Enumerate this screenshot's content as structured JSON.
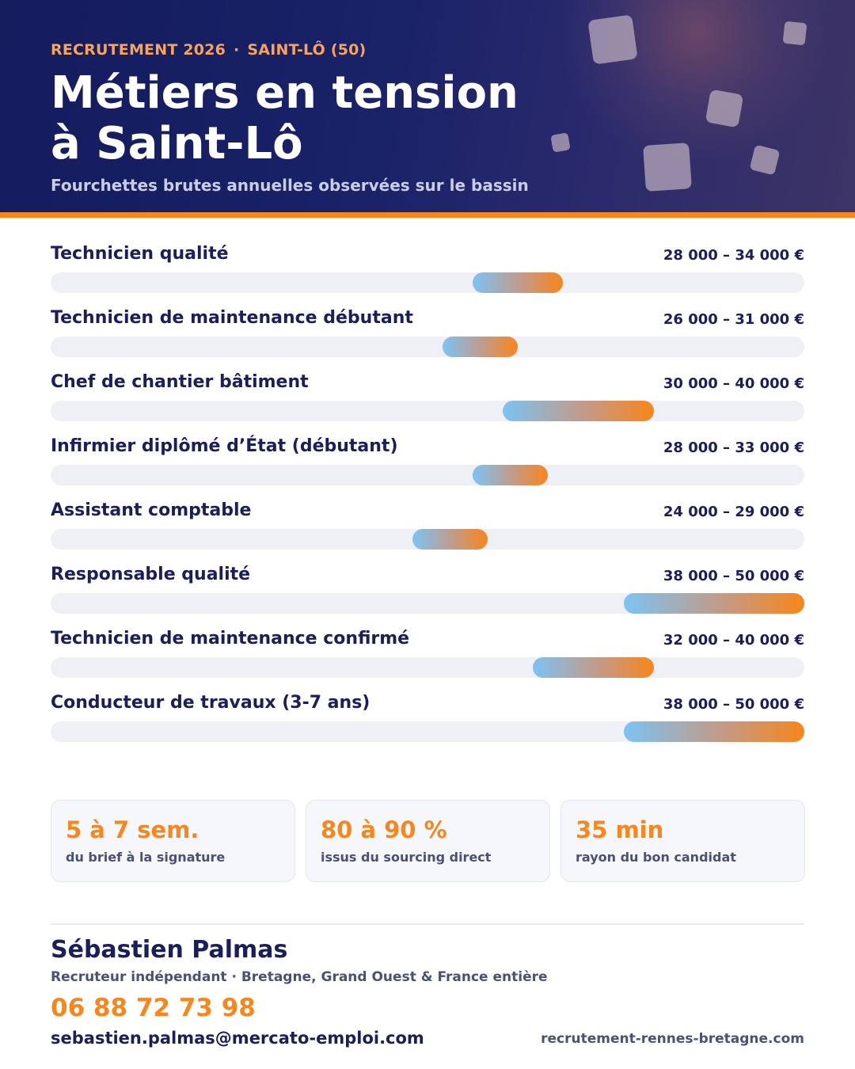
{
  "header": {
    "kicker_left": "RECRUTEMENT 2026",
    "kicker_separator": "·",
    "kicker_right": "SAINT-LÔ (50)",
    "title_line1": "Métiers en tension",
    "title_line2": "à Saint-Lô",
    "subtitle": "Fourchettes brutes annuelles observées sur le bassin"
  },
  "chart_data": {
    "type": "bar",
    "orientation": "horizontal",
    "representation": "salary ranges (min–max)",
    "unit": "€",
    "xlim": [
      0,
      50000
    ],
    "grid": false,
    "legend": "none",
    "colors": {
      "range_start": "#7cc3f3",
      "range_end": "#f7861c",
      "track": "#eef0f6"
    },
    "rows": [
      {
        "label": "Technicien qualité",
        "min": 28000,
        "max": 34000,
        "range_label": "28 000 – 34 000 €"
      },
      {
        "label": "Technicien de maintenance débutant",
        "min": 26000,
        "max": 31000,
        "range_label": "26 000 – 31 000 €"
      },
      {
        "label": "Chef de chantier bâtiment",
        "min": 30000,
        "max": 40000,
        "range_label": "30 000 – 40 000 €"
      },
      {
        "label": "Infirmier diplômé d’État (débutant)",
        "min": 28000,
        "max": 33000,
        "range_label": "28 000 – 33 000 €"
      },
      {
        "label": "Assistant comptable",
        "min": 24000,
        "max": 29000,
        "range_label": "24 000 – 29 000 €"
      },
      {
        "label": "Responsable qualité",
        "min": 38000,
        "max": 50000,
        "range_label": "38 000 – 50 000 €"
      },
      {
        "label": "Technicien de maintenance confirmé",
        "min": 32000,
        "max": 40000,
        "range_label": "32 000 – 40 000 €"
      },
      {
        "label": "Conducteur de travaux (3-7 ans)",
        "min": 38000,
        "max": 50000,
        "range_label": "38 000 – 50 000 €"
      }
    ]
  },
  "stats": [
    {
      "value": "5 à 7 sem.",
      "label": "du brief à la signature"
    },
    {
      "value": "80 à 90 %",
      "label": "issus du sourcing direct"
    },
    {
      "value": "35 min",
      "label": "rayon du bon candidat"
    }
  ],
  "contact": {
    "name": "Sébastien Palmas",
    "role": "Recruteur indépendant · Bretagne, Grand Ouest & France entière",
    "phone": "06 88 72 73 98",
    "email": "sebastien.palmas@mercato-emploi.com",
    "website": "recrutement-rennes-bretagne.com"
  },
  "colors": {
    "navy": "#1a1f5c",
    "accent_orange": "#f7861c",
    "kicker_orange": "#f7a35a"
  }
}
